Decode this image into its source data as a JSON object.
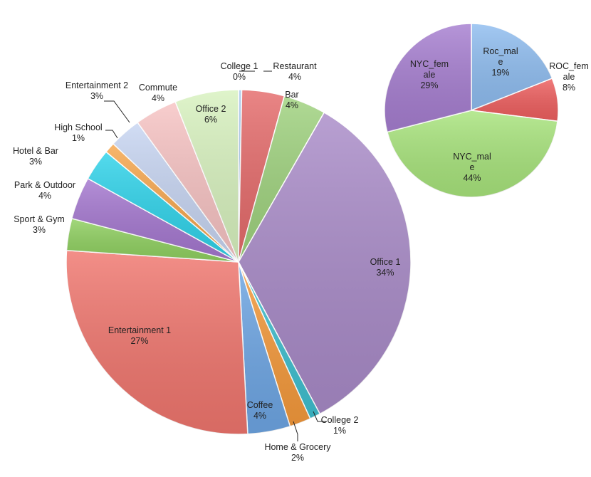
{
  "chart_data": [
    {
      "type": "pie",
      "title": "",
      "slices": [
        {
          "label": [
            "College 1"
          ],
          "value": 0.3,
          "pct": "0%",
          "color": "#a8c8ec"
        },
        {
          "label": [
            "Restaurant"
          ],
          "value": 4,
          "pct": "4%",
          "color": "#e56b6b"
        },
        {
          "label": [
            "Bar"
          ],
          "value": 4,
          "pct": "4%",
          "color": "#9fd27e"
        },
        {
          "label": [
            "Office 1"
          ],
          "value": 34,
          "pct": "34%",
          "color": "#a98bc8"
        },
        {
          "label": [
            "College 2"
          ],
          "value": 1,
          "pct": "1%",
          "color": "#3ebfcf"
        },
        {
          "label": [
            "Home & Grocery"
          ],
          "value": 2,
          "pct": "2%",
          "color": "#f59a3c"
        },
        {
          "label": [
            "Coffee"
          ],
          "value": 4,
          "pct": "4%",
          "color": "#6ea6e4"
        },
        {
          "label": [
            "Entertainment 1"
          ],
          "value": 27,
          "pct": "27%",
          "color": "#f0766e"
        },
        {
          "label": [
            "Sport & Gym"
          ],
          "value": 3,
          "pct": "3%",
          "color": "#8fd060"
        },
        {
          "label": [
            "Park & Outdoor"
          ],
          "value": 4,
          "pct": "4%",
          "color": "#a477cf"
        },
        {
          "label": [
            "Hotel & Bar"
          ],
          "value": 3,
          "pct": "3%",
          "color": "#2fd3ea"
        },
        {
          "label": [
            "High School"
          ],
          "value": 1,
          "pct": "1%",
          "color": "#f6a64c"
        },
        {
          "label": [
            "Entertainment 2"
          ],
          "value": 3,
          "pct": "3%",
          "color": "#c7d5f2"
        },
        {
          "label": [
            "Commute"
          ],
          "value": 4,
          "pct": "4%",
          "color": "#f7c3c3"
        },
        {
          "label": [
            "Office 2"
          ],
          "value": 6,
          "pct": "6%",
          "color": "#d8f2bf"
        }
      ]
    },
    {
      "type": "pie",
      "title": "",
      "slices": [
        {
          "label": [
            "Roc_mal",
            "e"
          ],
          "value": 19,
          "pct": "19%",
          "color": "#8fbdf0"
        },
        {
          "label": [
            "ROC_fem",
            "ale"
          ],
          "value": 8,
          "pct": "8%",
          "color": "#ee5f5f"
        },
        {
          "label": [
            "NYC_mal",
            "e"
          ],
          "value": 44,
          "pct": "44%",
          "color": "#a8e47c"
        },
        {
          "label": [
            "NYC_fem",
            "ale"
          ],
          "value": 29,
          "pct": "29%",
          "color": "#a67ed0"
        }
      ]
    }
  ]
}
